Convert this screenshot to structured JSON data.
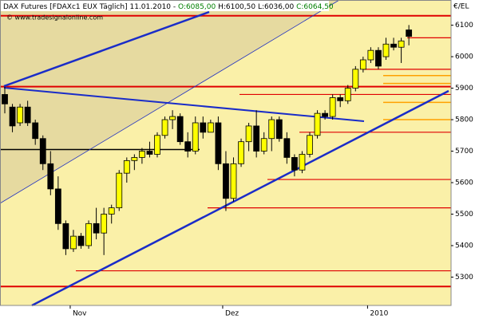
{
  "chart_data": {
    "type": "candlestick",
    "title": "DAX Futures [FDAXc1 EUX Täglich] 11.01.2010 -",
    "quote": [
      "O:6085,00",
      "H:6100,50",
      "L:6036,00",
      "C:6064,50"
    ],
    "watermark": "© www.tradesignalonline.com",
    "y_label": "€/EL",
    "categories": [
      null,
      null,
      null,
      null,
      null,
      null,
      null,
      null,
      null,
      "Nov",
      null,
      null,
      null,
      null,
      null,
      null,
      null,
      null,
      null,
      null,
      null,
      null,
      null,
      null,
      null,
      null,
      null,
      null,
      null,
      "Dez",
      null,
      null,
      null,
      null,
      null,
      null,
      null,
      null,
      null,
      null,
      null,
      null,
      null,
      null,
      null,
      null,
      null,
      null,
      "2010",
      null,
      null,
      null,
      null,
      null
    ],
    "open": [
      5880,
      5840,
      5790,
      5840,
      5790,
      5740,
      5660,
      5580,
      5470,
      5390,
      5430,
      5400,
      5470,
      5440,
      5500,
      5520,
      5630,
      5670,
      5680,
      5700,
      5690,
      5750,
      5800,
      5810,
      5730,
      5700,
      5790,
      5760,
      5790,
      5660,
      5550,
      5660,
      5730,
      5780,
      5700,
      5740,
      5800,
      5740,
      5680,
      5640,
      5690,
      5750,
      5820,
      5810,
      5870,
      5860,
      5900,
      5960,
      5990,
      6020,
      6000,
      6040,
      6030,
      6085
    ],
    "high": [
      5905,
      5850,
      5850,
      5860,
      5800,
      5750,
      5700,
      5620,
      5480,
      5450,
      5440,
      5480,
      5520,
      5520,
      5530,
      5640,
      5680,
      5690,
      5710,
      5730,
      5760,
      5810,
      5830,
      5820,
      5760,
      5810,
      5810,
      5800,
      5810,
      5700,
      5680,
      5740,
      5790,
      5830,
      5760,
      5810,
      5810,
      5760,
      5690,
      5700,
      5760,
      5830,
      5830,
      5880,
      5880,
      5910,
      5970,
      6000,
      6030,
      6030,
      6060,
      6060,
      6060,
      6100.5
    ],
    "low": [
      5820,
      5760,
      5780,
      5780,
      5720,
      5640,
      5560,
      5450,
      5370,
      5380,
      5390,
      5390,
      5420,
      5370,
      5470,
      5510,
      5600,
      5640,
      5660,
      5680,
      5680,
      5740,
      5770,
      5720,
      5680,
      5690,
      5740,
      5760,
      5640,
      5510,
      5540,
      5650,
      5700,
      5680,
      5690,
      5700,
      5730,
      5660,
      5620,
      5630,
      5680,
      5740,
      5800,
      5800,
      5840,
      5850,
      5890,
      5950,
      5980,
      5960,
      5990,
      6020,
      5980,
      6036
    ],
    "close": [
      5850,
      5780,
      5840,
      5790,
      5740,
      5660,
      5580,
      5470,
      5390,
      5430,
      5400,
      5470,
      5440,
      5500,
      5520,
      5630,
      5670,
      5680,
      5700,
      5690,
      5750,
      5800,
      5810,
      5730,
      5700,
      5790,
      5760,
      5790,
      5660,
      5550,
      5660,
      5730,
      5780,
      5700,
      5740,
      5800,
      5740,
      5680,
      5640,
      5690,
      5750,
      5820,
      5810,
      5870,
      5860,
      5900,
      5960,
      5990,
      6020,
      5970,
      6040,
      6030,
      6050,
      6064.5
    ],
    "up_color": "#ffff00",
    "down_color": "#000000",
    "red_levels": [
      6130,
      6060,
      5960,
      5905,
      5880,
      5760,
      5610,
      5520,
      5320,
      5270
    ],
    "orange_levels": [
      5940,
      5915,
      5855,
      5800
    ],
    "black_levels": [
      5705
    ],
    "ylim": [
      5210,
      6180
    ],
    "yticks": [
      5300,
      5400,
      5500,
      5600,
      5700,
      5800,
      5900,
      6000,
      6100
    ]
  }
}
